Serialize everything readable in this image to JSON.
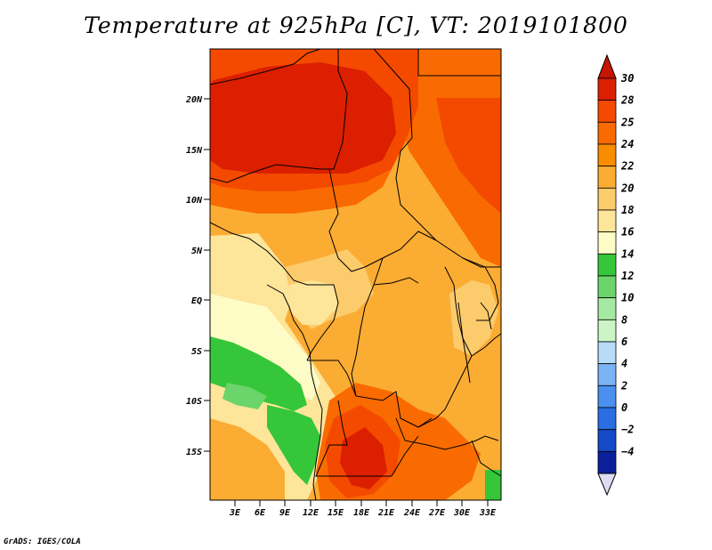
{
  "title": "Temperature at 925hPa [C], VT: 2019101800",
  "credit": "GrADS: IGES/COLA",
  "map": {
    "variable": "Temperature at 925hPa",
    "units": "C",
    "valid_time": "2019101800",
    "lon_range": [
      0,
      34.5
    ],
    "lat_range": [
      -19.5,
      24
    ],
    "lat_ticks": [
      {
        "value": 20,
        "label": "20N"
      },
      {
        "value": 15,
        "label": "15N"
      },
      {
        "value": 10,
        "label": "10N"
      },
      {
        "value": 5,
        "label": "5N"
      },
      {
        "value": 0,
        "label": "EQ"
      },
      {
        "value": -5,
        "label": "5S"
      },
      {
        "value": -10,
        "label": "10S"
      },
      {
        "value": -15,
        "label": "15S"
      }
    ],
    "lon_ticks": [
      {
        "value": 3,
        "label": "3E"
      },
      {
        "value": 6,
        "label": "6E"
      },
      {
        "value": 9,
        "label": "9E"
      },
      {
        "value": 12,
        "label": "12E"
      },
      {
        "value": 15,
        "label": "15E"
      },
      {
        "value": 18,
        "label": "18E"
      },
      {
        "value": 21,
        "label": "21E"
      },
      {
        "value": 24,
        "label": "24E"
      },
      {
        "value": 27,
        "label": "27E"
      },
      {
        "value": 30,
        "label": "30E"
      },
      {
        "value": 33,
        "label": "33E"
      }
    ]
  },
  "colorbar": {
    "levels": [
      {
        "label": "30",
        "color": "#dc1f00"
      },
      {
        "label": "28",
        "color": "#f34a00"
      },
      {
        "label": "25",
        "color": "#f96b00"
      },
      {
        "label": "24",
        "color": "#f98c00"
      },
      {
        "label": "22",
        "color": "#fbac33"
      },
      {
        "label": "20",
        "color": "#fccb6c"
      },
      {
        "label": "18",
        "color": "#fde59a"
      },
      {
        "label": "16",
        "color": "#fefcc6"
      },
      {
        "label": "14",
        "color": "#36c63a"
      },
      {
        "label": "12",
        "color": "#6bd46a"
      },
      {
        "label": "10",
        "color": "#a6e9a3"
      },
      {
        "label": "8",
        "color": "#cdf4c6"
      },
      {
        "label": "6",
        "color": "#b6dcfa"
      },
      {
        "label": "4",
        "color": "#7ab4f5"
      },
      {
        "label": "2",
        "color": "#4b90ee"
      },
      {
        "label": "0",
        "color": "#2a6ee4"
      },
      {
        "label": "−2",
        "color": "#1449c8"
      },
      {
        "label": "−4",
        "color": "#0a1f9a"
      }
    ],
    "top_arrow_color": "#c61500",
    "bottom_arrow_color": "#dcdcf4",
    "bottom_box_color": "#050a6e"
  }
}
